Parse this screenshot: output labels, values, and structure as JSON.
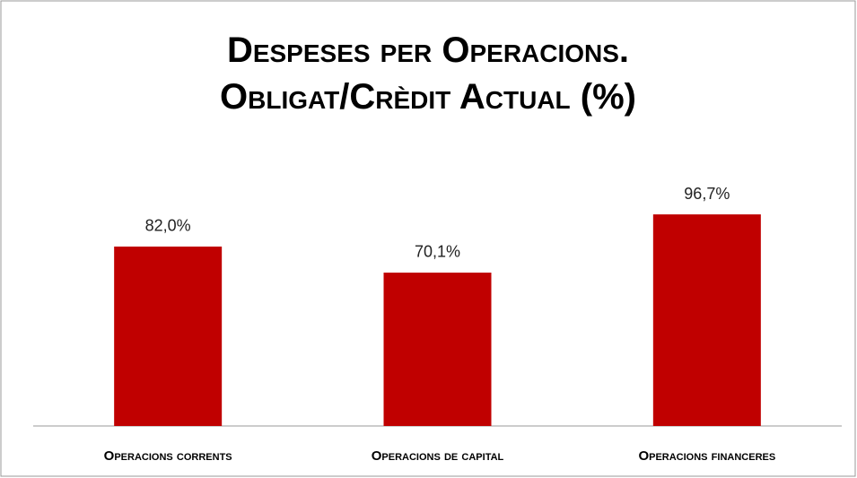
{
  "chart_data": {
    "type": "bar",
    "title": "Despeses per Operacions. Obligat/Crèdit Actual (%)",
    "categories": [
      "Operacions corrents",
      "Operacions de capital",
      "Operacions financeres"
    ],
    "values": [
      82.0,
      70.1,
      96.7
    ],
    "value_labels": [
      "82,0%",
      "70,1%",
      "96,7%"
    ],
    "color": "#c00000"
  }
}
